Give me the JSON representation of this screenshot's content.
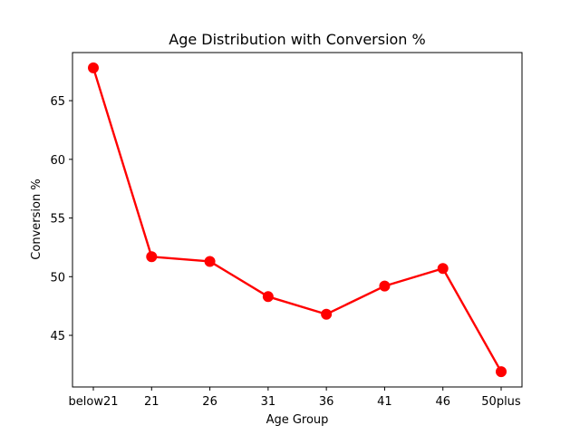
{
  "chart_data": {
    "type": "line",
    "title": "Age Distribution with Conversion %",
    "xlabel": "Age Group",
    "ylabel": "Conversion %",
    "categories": [
      "below21",
      "21",
      "26",
      "31",
      "36",
      "41",
      "46",
      "50plus"
    ],
    "series": [
      {
        "values": [
          67.8,
          51.7,
          51.3,
          48.3,
          46.8,
          49.2,
          50.7,
          41.9
        ],
        "color": "#ff0000",
        "marker": "circle"
      }
    ],
    "ylim": [
      40.6,
      69.1
    ],
    "yticks": [
      45,
      50,
      55,
      60,
      65
    ],
    "grid": false,
    "legend": false
  }
}
